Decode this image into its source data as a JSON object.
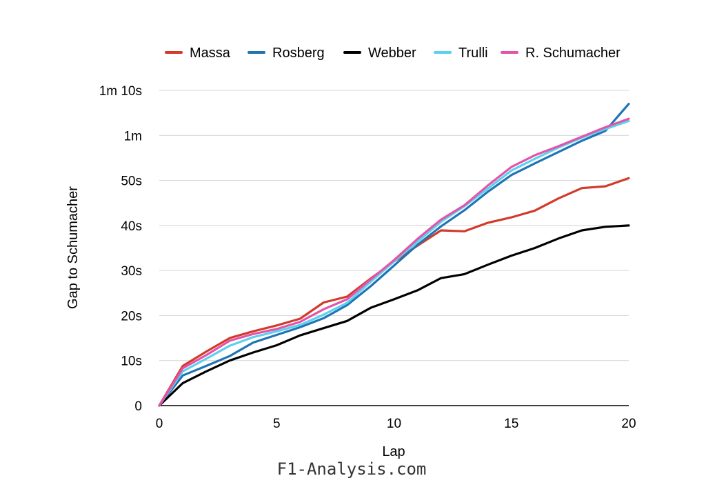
{
  "chart_data": {
    "type": "line",
    "title": "",
    "xlabel": "Lap",
    "ylabel": "Gap to Schumacher",
    "xlim": [
      0,
      20
    ],
    "ylim": [
      0,
      70
    ],
    "x_ticks": [
      0,
      5,
      10,
      15,
      20
    ],
    "x_tick_labels": [
      "0",
      "5",
      "10",
      "15",
      "20"
    ],
    "y_ticks": [
      0,
      10,
      20,
      30,
      40,
      50,
      60,
      70
    ],
    "y_tick_labels": [
      "0",
      "10s",
      "20s",
      "30s",
      "40s",
      "50s",
      "1m",
      "1m 10s"
    ],
    "grid": true,
    "legend_position": "top",
    "x": [
      0,
      1,
      2,
      3,
      4,
      5,
      6,
      7,
      8,
      9,
      10,
      11,
      12,
      13,
      14,
      15,
      16,
      17,
      18,
      19,
      20
    ],
    "series": [
      {
        "name": "Massa",
        "color": "#d23a2a",
        "values": [
          0,
          8.8,
          12,
          15,
          16.5,
          17.8,
          19.3,
          22.9,
          24.2,
          28.2,
          32,
          35.5,
          38.9,
          38.7,
          40.6,
          41.8,
          43.3,
          46,
          48.3,
          48.7,
          50.5
        ]
      },
      {
        "name": "Rosberg",
        "color": "#1f74b4",
        "values": [
          0,
          6.7,
          8.8,
          11,
          14,
          15.7,
          17.4,
          19.4,
          22.3,
          26.5,
          31.1,
          35.7,
          39.8,
          43.4,
          47.5,
          51.2,
          53.8,
          56.3,
          58.8,
          61,
          67
        ]
      },
      {
        "name": "Webber",
        "color": "#000000",
        "values": [
          0,
          5,
          7.6,
          10,
          11.8,
          13.4,
          15.6,
          17.2,
          18.8,
          21.7,
          23.6,
          25.6,
          28.3,
          29.2,
          31.3,
          33.3,
          35,
          37.1,
          38.9,
          39.7,
          40
        ]
      },
      {
        "name": "Trulli",
        "color": "#5bd1ee",
        "values": [
          0,
          7.6,
          10.4,
          13.3,
          15.2,
          16.5,
          17.9,
          20.2,
          22.8,
          27.5,
          32,
          36.4,
          40.8,
          44.3,
          48.2,
          52.2,
          54.8,
          57.3,
          59.5,
          61.4,
          63.2
        ]
      },
      {
        "name": "R. Schumacher",
        "color": "#e553a9",
        "values": [
          0,
          8.3,
          11.2,
          14.4,
          15.9,
          17,
          18.6,
          21.4,
          23.6,
          28,
          32.3,
          37,
          41.3,
          44.5,
          48.9,
          53,
          55.6,
          57.6,
          59.7,
          61.8,
          63.7
        ]
      }
    ]
  },
  "watermark": "F1-Analysis.com"
}
